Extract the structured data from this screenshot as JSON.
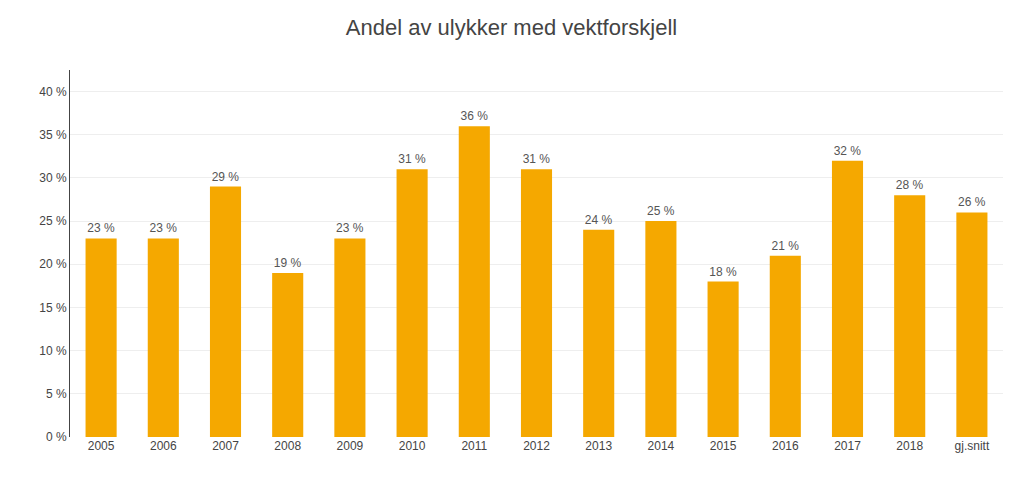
{
  "chart_data": {
    "type": "bar",
    "title": "Andel av ulykker med vektforskjell",
    "categories": [
      "2005",
      "2006",
      "2007",
      "2008",
      "2009",
      "2010",
      "2011",
      "2012",
      "2013",
      "2014",
      "2015",
      "2016",
      "2017",
      "2018",
      "gj.snitt"
    ],
    "values": [
      0.23,
      0.23,
      0.29,
      0.19,
      0.23,
      0.31,
      0.36,
      0.31,
      0.24,
      0.25,
      0.18,
      0.21,
      0.32,
      0.28,
      0.26
    ],
    "value_labels": [
      "23 %",
      "23 %",
      "29 %",
      "19 %",
      "23 %",
      "31 %",
      "36 %",
      "31 %",
      "24 %",
      "25 %",
      "18 %",
      "21 %",
      "32 %",
      "28 %",
      "26 %"
    ],
    "data_labels": true,
    "color": "#F5A800",
    "ylim": [
      0,
      0.425
    ],
    "yticks": [
      {
        "value": 0.0,
        "label": "0 %"
      },
      {
        "value": 0.05,
        "label": "5 %"
      },
      {
        "value": 0.1,
        "label": "10 %"
      },
      {
        "value": 0.15,
        "label": "15 %"
      },
      {
        "value": 0.2,
        "label": "20 %"
      },
      {
        "value": 0.25,
        "label": "25 %"
      },
      {
        "value": 0.3,
        "label": "30 %"
      },
      {
        "value": 0.35,
        "label": "35 %"
      },
      {
        "value": 0.4,
        "label": "40 %"
      }
    ],
    "grid": true
  }
}
